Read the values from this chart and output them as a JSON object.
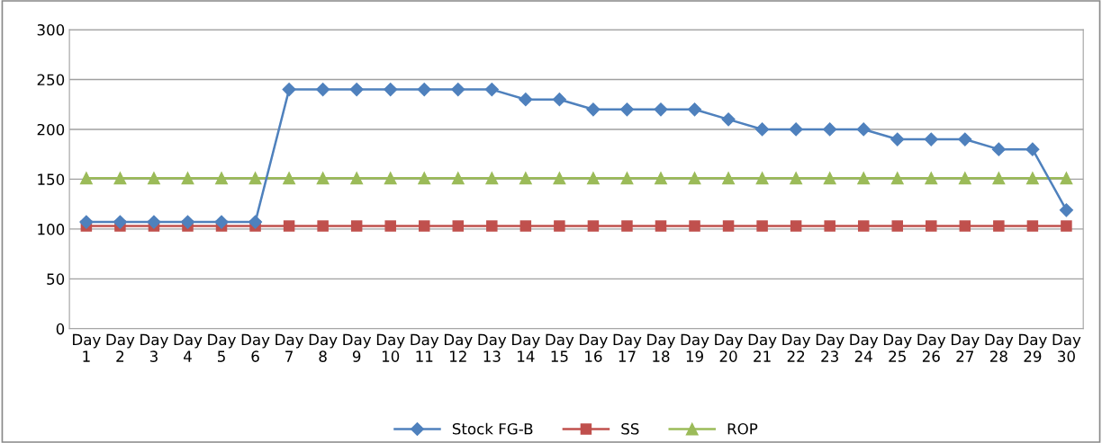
{
  "chart_data": {
    "type": "line",
    "categories": [
      "Day 1",
      "Day 2",
      "Day 3",
      "Day 4",
      "Day 5",
      "Day 6",
      "Day 7",
      "Day 8",
      "Day 9",
      "Day 10",
      "Day 11",
      "Day 12",
      "Day 13",
      "Day 14",
      "Day 15",
      "Day 16",
      "Day 17",
      "Day 18",
      "Day 19",
      "Day 20",
      "Day 21",
      "Day 22",
      "Day 23",
      "Day 24",
      "Day 25",
      "Day 26",
      "Day 27",
      "Day 28",
      "Day 29",
      "Day 30"
    ],
    "series": [
      {
        "name": "Stock FG-B",
        "color": "#4f81bd",
        "marker": "diamond",
        "values": [
          107,
          107,
          107,
          107,
          107,
          107,
          240,
          240,
          240,
          240,
          240,
          240,
          240,
          230,
          230,
          220,
          220,
          220,
          220,
          210,
          200,
          200,
          200,
          200,
          190,
          190,
          190,
          180,
          180,
          119
        ]
      },
      {
        "name": "SS",
        "color": "#c0504d",
        "marker": "square",
        "values": [
          103,
          103,
          103,
          103,
          103,
          103,
          103,
          103,
          103,
          103,
          103,
          103,
          103,
          103,
          103,
          103,
          103,
          103,
          103,
          103,
          103,
          103,
          103,
          103,
          103,
          103,
          103,
          103,
          103,
          103
        ]
      },
      {
        "name": "ROP",
        "color": "#9bbb59",
        "marker": "triangle",
        "values": [
          151,
          151,
          151,
          151,
          151,
          151,
          151,
          151,
          151,
          151,
          151,
          151,
          151,
          151,
          151,
          151,
          151,
          151,
          151,
          151,
          151,
          151,
          151,
          151,
          151,
          151,
          151,
          151,
          151,
          151
        ]
      }
    ],
    "ylim": [
      0,
      300
    ],
    "yticks": [
      0,
      50,
      100,
      150,
      200,
      250,
      300
    ],
    "grid": "y",
    "legend": "bottom"
  }
}
